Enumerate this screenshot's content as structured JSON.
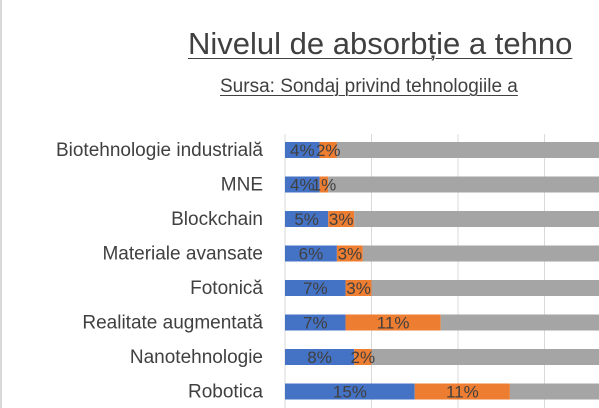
{
  "chart_data": {
    "type": "bar",
    "stacked": true,
    "orientation": "horizontal",
    "title": "Nivelul de absorbție a tehno",
    "subtitle": "Sursa: Sondaj privind tehnologiile a",
    "categories": [
      "Biotehnologie industrială",
      "MNE",
      "Blockchain",
      "Materiale avansate",
      "Fotonică",
      "Realitate augmentată",
      "Nanotehnologie",
      "Robotica"
    ],
    "series": [
      {
        "values": [
          4,
          4,
          5,
          6,
          7,
          7,
          8,
          15
        ],
        "labels": [
          "4%",
          "4%",
          "5%",
          "6%",
          "7%",
          "7%",
          "8%",
          "15%"
        ],
        "color": "#4472c4"
      },
      {
        "values": [
          2,
          1,
          3,
          3,
          3,
          11,
          2,
          11
        ],
        "labels": [
          "2%",
          "1%",
          "3%",
          "3%",
          "3%",
          "11%",
          "2%",
          "11%"
        ],
        "color": "#ed7d31"
      },
      {
        "values": [
          94,
          95,
          92,
          91,
          90,
          82,
          90,
          74
        ],
        "color": "#a5a5a5"
      }
    ],
    "xlim": [
      0,
      100
    ],
    "grid": true
  }
}
